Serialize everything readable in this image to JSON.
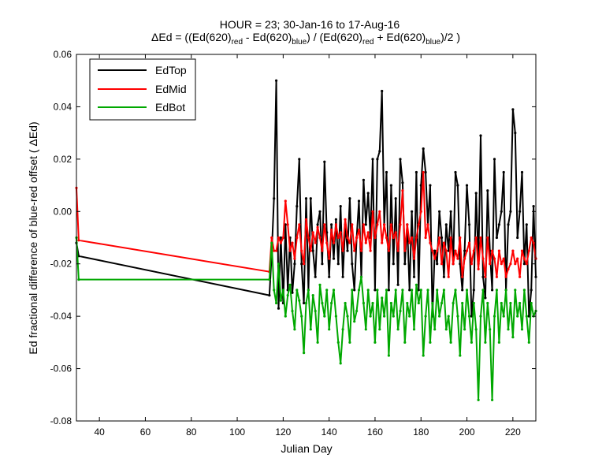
{
  "chart_data": {
    "type": "line",
    "title_line1": "HOUR = 23; 30-Jan-16 to 17-Aug-16",
    "title_line2": {
      "prefix": "ΔEd = ((Ed(620)",
      "sub_red": "red",
      "mid1": " - Ed(620)",
      "sub_blue": "blue",
      "mid2": ") / (Ed(620)",
      "sub_red2": "red",
      "mid3": " + Ed(620)",
      "sub_blue2": "blue",
      "suffix": ")/2  )"
    },
    "xlabel": "Julian Day",
    "ylabel": "Ed fractional difference of blue-red offset ( ΔEd)",
    "xlim": [
      30,
      230
    ],
    "ylim": [
      -0.08,
      0.06
    ],
    "xticks": [
      40,
      60,
      80,
      100,
      120,
      140,
      160,
      180,
      200,
      220
    ],
    "xtick_labels": [
      "40",
      "60",
      "80",
      "100",
      "120",
      "140",
      "160",
      "180",
      "200",
      "220"
    ],
    "yticks": [
      -0.08,
      -0.06,
      -0.04,
      -0.02,
      0.0,
      0.02,
      0.04,
      0.06
    ],
    "ytick_labels": [
      "-0.08",
      "-0.06",
      "-0.04",
      "-0.02",
      "0.00",
      "0.02",
      "0.04",
      "0.06"
    ],
    "grid": false,
    "legend_position": "top-left",
    "series": [
      {
        "name": "EdTop",
        "color": "#000000",
        "x": [
          30,
          31,
          114,
          115,
          116,
          117,
          118,
          119,
          120,
          121,
          122,
          123,
          124,
          125,
          126,
          127,
          128,
          129,
          130,
          131,
          132,
          133,
          134,
          135,
          136,
          137,
          138,
          139,
          140,
          141,
          142,
          143,
          144,
          145,
          146,
          147,
          148,
          149,
          150,
          151,
          152,
          153,
          154,
          155,
          156,
          157,
          158,
          159,
          160,
          161,
          162,
          163,
          164,
          165,
          166,
          167,
          168,
          169,
          170,
          171,
          172,
          173,
          174,
          175,
          176,
          177,
          178,
          179,
          180,
          181,
          182,
          183,
          184,
          185,
          186,
          187,
          188,
          189,
          190,
          191,
          192,
          193,
          194,
          195,
          196,
          197,
          198,
          199,
          200,
          201,
          202,
          203,
          204,
          205,
          206,
          207,
          208,
          209,
          210,
          211,
          212,
          213,
          214,
          215,
          216,
          217,
          218,
          219,
          220,
          221,
          222,
          223,
          224,
          225,
          226,
          227,
          228,
          229,
          230
        ],
        "y": [
          -0.012,
          -0.017,
          -0.032,
          -0.016,
          0.005,
          0.05,
          -0.037,
          -0.01,
          -0.035,
          -0.005,
          -0.03,
          -0.01,
          -0.031,
          -0.02,
          0.002,
          0.02,
          -0.02,
          -0.035,
          0.005,
          -0.03,
          0.005,
          -0.015,
          -0.025,
          -0.005,
          0.0,
          -0.02,
          0.019,
          -0.008,
          -0.025,
          -0.005,
          -0.018,
          -0.003,
          -0.02,
          0.002,
          -0.025,
          -0.005,
          -0.015,
          0.005,
          -0.02,
          -0.03,
          -0.01,
          0.004,
          -0.025,
          0.012,
          -0.005,
          0.007,
          -0.01,
          0.02,
          -0.03,
          0.02,
          0.023,
          0.046,
          -0.005,
          0.015,
          -0.03,
          0.01,
          -0.02,
          0.005,
          -0.028,
          0.02,
          0.011,
          -0.02,
          -0.005,
          -0.03,
          0.0,
          -0.025,
          0.015,
          -0.03,
          0.01,
          0.024,
          0.015,
          -0.005,
          0.01,
          -0.04,
          -0.015,
          -0.02,
          0.0,
          -0.01,
          -0.025,
          -0.005,
          -0.015,
          0.0,
          -0.02,
          0.015,
          0.01,
          -0.02,
          -0.03,
          -0.015,
          0.01,
          -0.005,
          -0.04,
          -0.03,
          0.007,
          -0.02,
          0.029,
          -0.025,
          -0.033,
          0.008,
          -0.015,
          -0.03,
          0.02,
          -0.01,
          -0.005,
          0.0,
          0.015,
          -0.03,
          -0.005,
          0.0,
          0.039,
          0.03,
          -0.01,
          0.0,
          0.015,
          -0.02,
          -0.005,
          -0.04,
          -0.03,
          0.002,
          -0.025
        ]
      },
      {
        "name": "EdMid",
        "color": "#ff0000",
        "x": [
          30,
          31,
          114,
          115,
          116,
          117,
          118,
          119,
          120,
          121,
          122,
          123,
          124,
          125,
          126,
          127,
          128,
          129,
          130,
          131,
          132,
          133,
          134,
          135,
          136,
          137,
          138,
          139,
          140,
          141,
          142,
          143,
          144,
          145,
          146,
          147,
          148,
          149,
          150,
          151,
          152,
          153,
          154,
          155,
          156,
          157,
          158,
          159,
          160,
          161,
          162,
          163,
          164,
          165,
          166,
          167,
          168,
          169,
          170,
          171,
          172,
          173,
          174,
          175,
          176,
          177,
          178,
          179,
          180,
          181,
          182,
          183,
          184,
          185,
          186,
          187,
          188,
          189,
          190,
          191,
          192,
          193,
          194,
          195,
          196,
          197,
          198,
          199,
          200,
          201,
          202,
          203,
          204,
          205,
          206,
          207,
          208,
          209,
          210,
          211,
          212,
          213,
          214,
          215,
          216,
          217,
          218,
          219,
          220,
          221,
          222,
          223,
          224,
          225,
          226,
          227,
          228,
          229,
          230
        ],
        "y": [
          0.009,
          -0.011,
          -0.023,
          -0.01,
          -0.015,
          -0.015,
          -0.01,
          -0.012,
          -0.01,
          0.004,
          -0.005,
          -0.015,
          -0.012,
          -0.018,
          -0.01,
          -0.005,
          -0.015,
          -0.02,
          -0.003,
          -0.01,
          -0.015,
          -0.008,
          -0.012,
          -0.006,
          -0.01,
          -0.015,
          -0.005,
          -0.012,
          -0.018,
          -0.007,
          -0.012,
          -0.005,
          -0.01,
          -0.008,
          -0.015,
          -0.003,
          -0.01,
          -0.012,
          -0.005,
          -0.015,
          -0.01,
          -0.007,
          -0.015,
          -0.005,
          -0.012,
          -0.008,
          -0.015,
          0.0,
          -0.01,
          -0.005,
          0.0,
          -0.012,
          -0.005,
          -0.01,
          -0.015,
          -0.005,
          -0.01,
          -0.008,
          -0.015,
          -0.005,
          0.008,
          -0.015,
          -0.005,
          -0.012,
          -0.01,
          -0.018,
          -0.01,
          -0.005,
          0.0,
          0.015,
          -0.01,
          -0.005,
          -0.012,
          -0.015,
          -0.018,
          -0.015,
          -0.01,
          -0.02,
          -0.012,
          -0.015,
          -0.025,
          -0.01,
          -0.02,
          -0.015,
          -0.018,
          -0.01,
          -0.025,
          -0.018,
          -0.015,
          -0.012,
          -0.02,
          -0.015,
          -0.01,
          -0.022,
          -0.01,
          -0.018,
          -0.025,
          -0.01,
          -0.02,
          -0.015,
          -0.018,
          -0.025,
          -0.015,
          -0.02,
          -0.018,
          -0.025,
          -0.022,
          -0.02,
          -0.015,
          -0.02,
          -0.018,
          -0.025,
          -0.015,
          -0.018,
          -0.02,
          -0.015,
          -0.01,
          -0.012,
          -0.018
        ]
      },
      {
        "name": "EdBot",
        "color": "#00a800",
        "x": [
          30,
          31,
          114,
          115,
          116,
          117,
          118,
          119,
          120,
          121,
          122,
          123,
          124,
          125,
          126,
          127,
          128,
          129,
          130,
          131,
          132,
          133,
          134,
          135,
          136,
          137,
          138,
          139,
          140,
          141,
          142,
          143,
          144,
          145,
          146,
          147,
          148,
          149,
          150,
          151,
          152,
          153,
          154,
          155,
          156,
          157,
          158,
          159,
          160,
          161,
          162,
          163,
          164,
          165,
          166,
          167,
          168,
          169,
          170,
          171,
          172,
          173,
          174,
          175,
          176,
          177,
          178,
          179,
          180,
          181,
          182,
          183,
          184,
          185,
          186,
          187,
          188,
          189,
          190,
          191,
          192,
          193,
          194,
          195,
          196,
          197,
          198,
          199,
          200,
          201,
          202,
          203,
          204,
          205,
          206,
          207,
          208,
          209,
          210,
          211,
          212,
          213,
          214,
          215,
          216,
          217,
          218,
          219,
          220,
          221,
          222,
          223,
          224,
          225,
          226,
          227,
          228,
          229,
          230
        ],
        "y": [
          -0.01,
          -0.026,
          -0.026,
          -0.012,
          -0.03,
          -0.035,
          -0.02,
          -0.034,
          -0.03,
          -0.04,
          -0.032,
          -0.028,
          -0.038,
          -0.045,
          -0.03,
          -0.034,
          -0.04,
          -0.054,
          -0.035,
          -0.03,
          -0.045,
          -0.032,
          -0.038,
          -0.05,
          -0.028,
          -0.035,
          -0.04,
          -0.03,
          -0.045,
          -0.035,
          -0.03,
          -0.04,
          -0.05,
          -0.058,
          -0.045,
          -0.035,
          -0.04,
          -0.05,
          -0.03,
          -0.042,
          -0.038,
          -0.03,
          -0.025,
          -0.035,
          -0.045,
          -0.03,
          -0.04,
          -0.035,
          -0.05,
          -0.03,
          -0.045,
          -0.033,
          -0.04,
          -0.03,
          -0.055,
          -0.035,
          -0.04,
          -0.03,
          -0.045,
          -0.038,
          -0.03,
          -0.05,
          -0.035,
          -0.04,
          -0.03,
          -0.045,
          -0.028,
          -0.035,
          -0.03,
          -0.055,
          -0.04,
          -0.03,
          -0.05,
          -0.035,
          -0.045,
          -0.03,
          -0.04,
          -0.035,
          -0.03,
          -0.045,
          -0.04,
          -0.05,
          -0.035,
          -0.03,
          -0.04,
          -0.055,
          -0.035,
          -0.045,
          -0.03,
          -0.04,
          -0.05,
          -0.035,
          -0.045,
          -0.072,
          -0.04,
          -0.03,
          -0.05,
          -0.035,
          -0.045,
          -0.072,
          -0.04,
          -0.03,
          -0.05,
          -0.035,
          -0.04,
          -0.03,
          -0.045,
          -0.035,
          -0.048,
          -0.03,
          -0.04,
          -0.035,
          -0.045,
          -0.03,
          -0.04,
          -0.05,
          -0.035,
          -0.04,
          -0.038
        ]
      }
    ]
  }
}
